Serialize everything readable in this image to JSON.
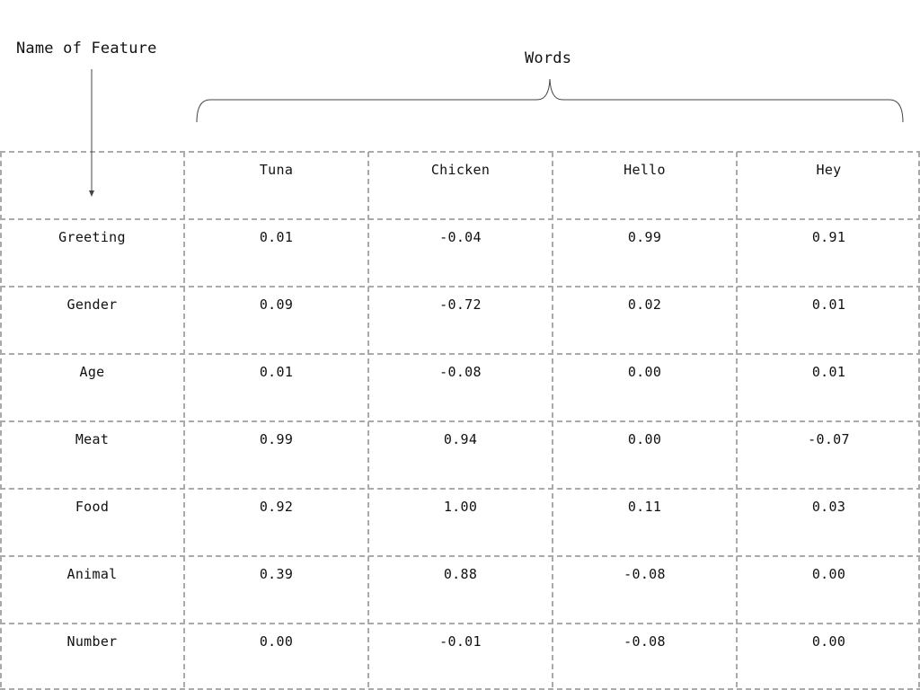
{
  "annotations": {
    "feature_label": "Name of Feature",
    "words_label": "Words"
  },
  "table": {
    "columns": [
      "",
      "Tuna",
      "Chicken",
      "Hello",
      "Hey"
    ],
    "rows": [
      {
        "feature": "Greeting",
        "values": [
          "0.01",
          "-0.04",
          "0.99",
          "0.91"
        ]
      },
      {
        "feature": "Gender",
        "values": [
          "0.09",
          "-0.72",
          "0.02",
          "0.01"
        ]
      },
      {
        "feature": "Age",
        "values": [
          "0.01",
          "-0.08",
          "0.00",
          "0.01"
        ]
      },
      {
        "feature": "Meat",
        "values": [
          "0.99",
          "0.94",
          "0.00",
          "-0.07"
        ]
      },
      {
        "feature": "Food",
        "values": [
          "0.92",
          "1.00",
          "0.11",
          "0.03"
        ]
      },
      {
        "feature": "Animal",
        "values": [
          "0.39",
          "0.88",
          "-0.08",
          "0.00"
        ]
      },
      {
        "feature": "Number",
        "values": [
          "0.00",
          "-0.01",
          "-0.08",
          "0.00"
        ]
      }
    ]
  },
  "colors": {
    "grid_line": "#aaaaaa",
    "annotation_line": "#444444",
    "text": "#111111"
  }
}
